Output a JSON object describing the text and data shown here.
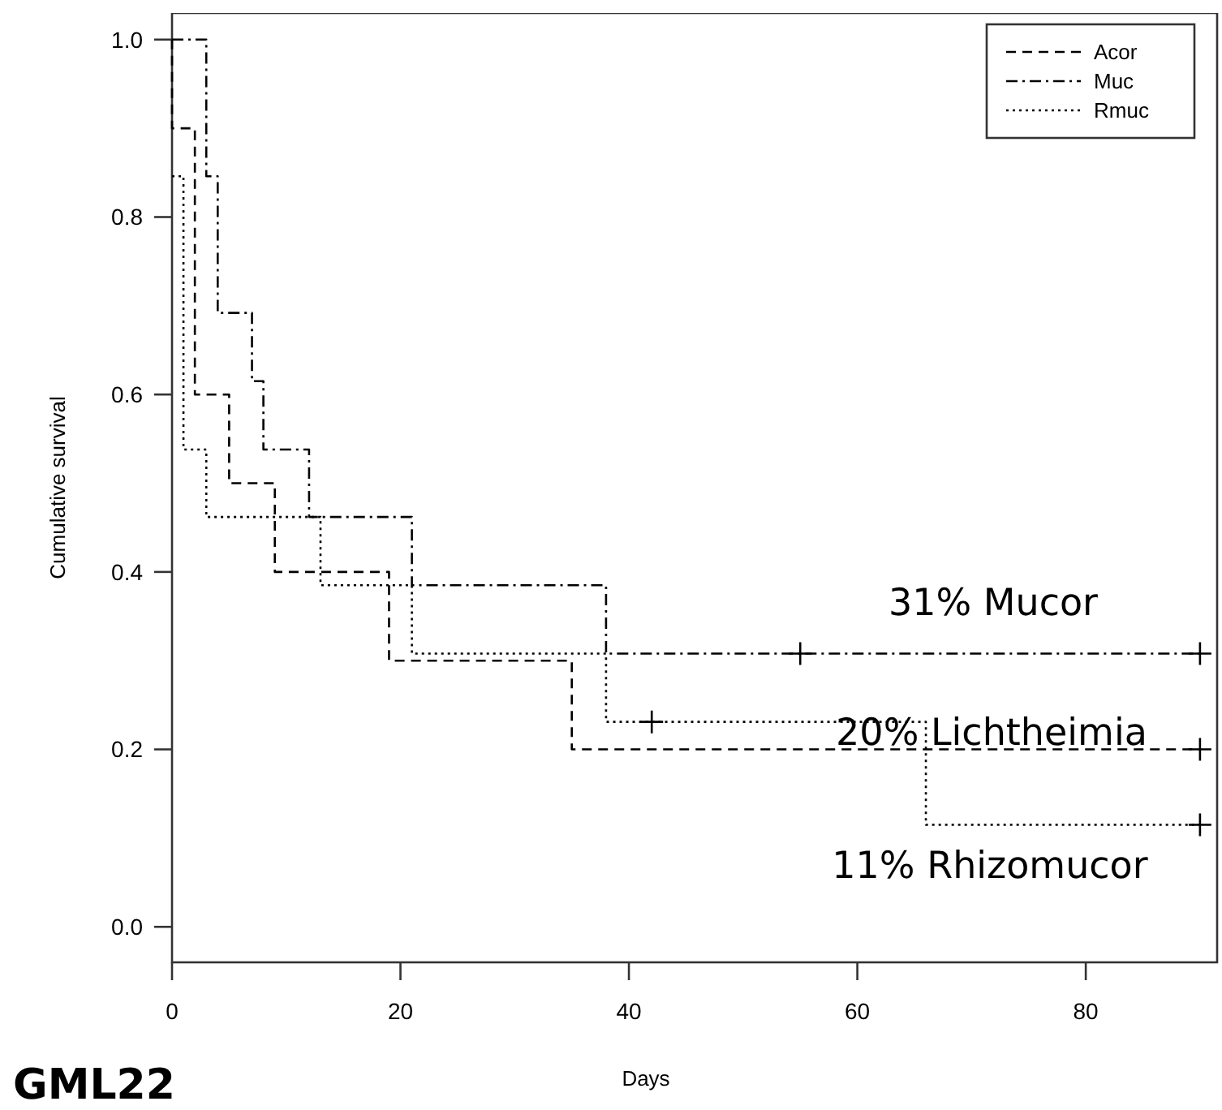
{
  "chart_data": {
    "type": "step",
    "xlabel": "Days",
    "ylabel": "Cumulative survival",
    "xlim": [
      0,
      91.5
    ],
    "ylim": [
      -0.04,
      1.03
    ],
    "xticks": [
      0,
      20,
      40,
      60,
      80
    ],
    "yticks": [
      {
        "value": 0,
        "label": "0.0"
      },
      {
        "value": 0.2,
        "label": "0.2"
      },
      {
        "value": 0.4,
        "label": "0.4"
      },
      {
        "value": 0.6,
        "label": "0.6"
      },
      {
        "value": 0.8,
        "label": "0.8"
      },
      {
        "value": 1,
        "label": "1.0"
      }
    ],
    "legend": "top right",
    "grid": false,
    "series": [
      {
        "name": "Acor",
        "color": "#000000",
        "line_style": "dashed",
        "x": [
          0,
          0,
          2,
          5,
          9,
          19,
          35,
          90
        ],
        "values": [
          1,
          0.9,
          0.6,
          0.5,
          0.4,
          0.3,
          0.2,
          0.2
        ]
      },
      {
        "name": "Muc",
        "color": "#000000",
        "line_style": "dashdot",
        "x": [
          0,
          3,
          4,
          7,
          8,
          12,
          21,
          38,
          90
        ],
        "values": [
          1,
          0.846,
          0.692,
          0.615,
          0.538,
          0.462,
          0.385,
          0.308,
          0.308
        ]
      },
      {
        "name": "Rmuc",
        "color": "#000000",
        "line_style": "dotted",
        "x": [
          0,
          1,
          3,
          13,
          21,
          38,
          66,
          90
        ],
        "values": [
          0.846,
          0.538,
          0.462,
          0.385,
          0.308,
          0.231,
          0.115,
          0.115
        ]
      },
      {
        "type": "scatter",
        "marker": "cross",
        "color": "#000000",
        "x": [
          55,
          90,
          42,
          90,
          90
        ],
        "values": [
          0.308,
          0.308,
          0.231,
          0.115,
          0.2
        ]
      }
    ],
    "annotations": [
      "31% Mucor",
      "20% Lichtheimia",
      "11% Rhizomucor",
      "GML22"
    ]
  }
}
